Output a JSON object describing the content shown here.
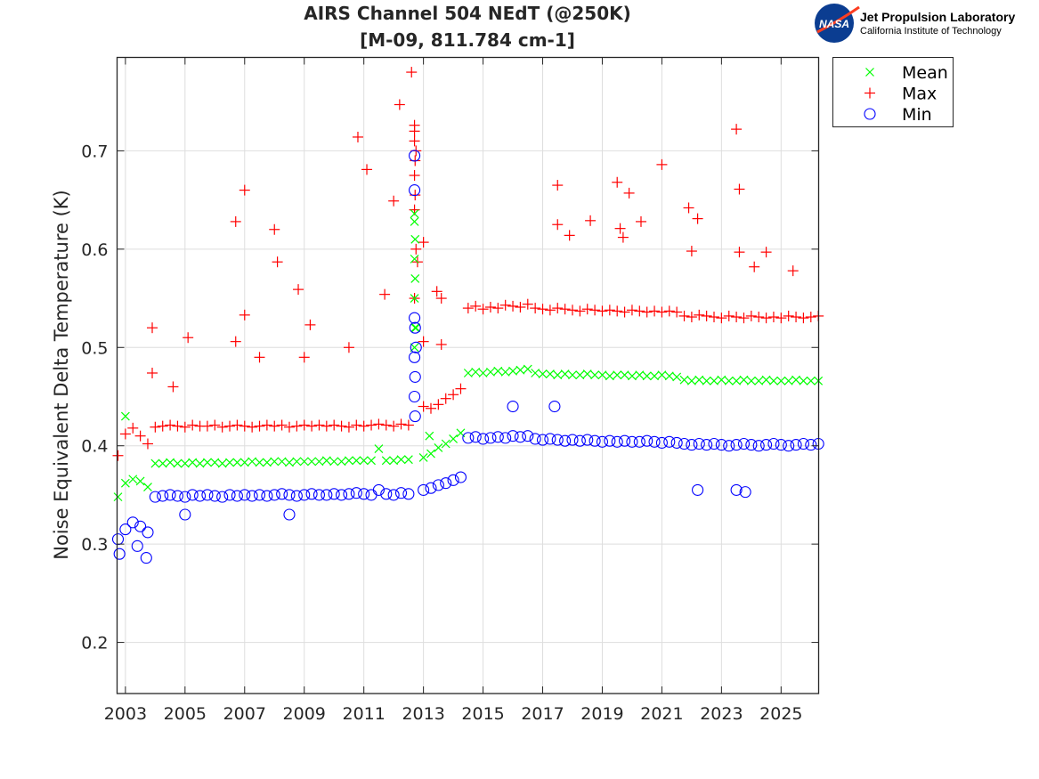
{
  "chart_data": {
    "type": "scatter",
    "title": [
      "AIRS Channel 504 NEdT (@250K)",
      "[M-09, 811.784 cm-1]"
    ],
    "xlabel": "",
    "ylabel": "Noise Equivalent Delta Temperature (K)",
    "xlim": [
      2002.72,
      2026.26
    ],
    "ylim": [
      0.148,
      0.795
    ],
    "xticks": [
      2003,
      2005,
      2007,
      2009,
      2011,
      2013,
      2015,
      2017,
      2019,
      2021,
      2023,
      2025
    ],
    "xtick_labels": [
      "2003",
      "2005",
      "2007",
      "2009",
      "2011",
      "2013",
      "2015",
      "2017",
      "2019",
      "2021",
      "2023",
      "2025"
    ],
    "yticks": [
      0.2,
      0.3,
      0.4,
      0.5,
      0.6,
      0.7
    ],
    "ytick_labels": [
      "0.2",
      "0.3",
      "0.4",
      "0.5",
      "0.6",
      "0.7"
    ],
    "grid": true,
    "legend_placement": "outside-top-right",
    "x": [
      2002.75,
      2003.0,
      2003.25,
      2003.5,
      2003.75,
      2004.0,
      2004.25,
      2004.5,
      2004.75,
      2005.0,
      2005.25,
      2005.5,
      2005.75,
      2006.0,
      2006.25,
      2006.5,
      2006.75,
      2007.0,
      2007.25,
      2007.5,
      2007.75,
      2008.0,
      2008.25,
      2008.5,
      2008.75,
      2009.0,
      2009.25,
      2009.5,
      2009.75,
      2010.0,
      2010.25,
      2010.5,
      2010.75,
      2011.0,
      2011.25,
      2011.5,
      2011.75,
      2012.0,
      2012.25,
      2012.5,
      2012.75,
      2013.0,
      2013.25,
      2013.5,
      2013.75,
      2014.0,
      2014.25,
      2014.5,
      2014.75,
      2015.0,
      2015.25,
      2015.5,
      2015.75,
      2016.0,
      2016.25,
      2016.5,
      2016.75,
      2017.0,
      2017.25,
      2017.5,
      2017.75,
      2018.0,
      2018.25,
      2018.5,
      2018.75,
      2019.0,
      2019.25,
      2019.5,
      2019.75,
      2020.0,
      2020.25,
      2020.5,
      2020.75,
      2021.0,
      2021.25,
      2021.5,
      2021.75,
      2022.0,
      2022.25,
      2022.5,
      2022.75,
      2023.0,
      2023.25,
      2023.5,
      2023.75,
      2024.0,
      2024.25,
      2024.5,
      2024.75,
      2025.0,
      2025.25,
      2025.5,
      2025.75,
      2026.0,
      2026.25
    ],
    "series": [
      {
        "name": "Mean",
        "marker": "x",
        "color": "#00ff00",
        "values": [
          0.348,
          0.362,
          0.366,
          0.364,
          0.358,
          0.382,
          0.382,
          0.383,
          0.382,
          0.382,
          0.383,
          0.382,
          0.383,
          0.383,
          0.382,
          0.383,
          0.383,
          0.383,
          0.384,
          0.383,
          0.383,
          0.384,
          0.384,
          0.383,
          0.384,
          0.384,
          0.384,
          0.384,
          0.385,
          0.384,
          0.384,
          0.385,
          0.385,
          0.385,
          0.385,
          0.397,
          0.385,
          0.385,
          0.386,
          0.386,
          0.52,
          0.388,
          0.392,
          0.398,
          0.402,
          0.407,
          0.413,
          0.474,
          0.475,
          0.474,
          0.475,
          0.476,
          0.475,
          0.476,
          0.477,
          0.478,
          0.474,
          0.473,
          0.473,
          0.472,
          0.473,
          0.472,
          0.472,
          0.473,
          0.472,
          0.472,
          0.471,
          0.472,
          0.472,
          0.471,
          0.472,
          0.471,
          0.471,
          0.472,
          0.471,
          0.47,
          0.467,
          0.466,
          0.467,
          0.466,
          0.466,
          0.467,
          0.466,
          0.466,
          0.467,
          0.466,
          0.466,
          0.467,
          0.466,
          0.466,
          0.466,
          0.467,
          0.466,
          0.466,
          0.466
        ],
        "outliers": [
          [
            2012.7,
            0.636
          ],
          [
            2012.7,
            0.628
          ],
          [
            2012.72,
            0.61
          ],
          [
            2012.7,
            0.59
          ],
          [
            2012.72,
            0.57
          ],
          [
            2012.7,
            0.55
          ],
          [
            2012.72,
            0.52
          ],
          [
            2012.7,
            0.5
          ],
          [
            2013.2,
            0.41
          ],
          [
            2003.0,
            0.43
          ]
        ]
      },
      {
        "name": "Max",
        "marker": "+",
        "color": "#ff0000",
        "values": [
          0.39,
          0.412,
          0.418,
          0.41,
          0.402,
          0.419,
          0.42,
          0.421,
          0.42,
          0.419,
          0.421,
          0.42,
          0.42,
          0.421,
          0.419,
          0.42,
          0.421,
          0.42,
          0.419,
          0.42,
          0.421,
          0.42,
          0.421,
          0.419,
          0.42,
          0.421,
          0.42,
          0.421,
          0.42,
          0.421,
          0.42,
          0.419,
          0.421,
          0.42,
          0.421,
          0.422,
          0.421,
          0.42,
          0.422,
          0.421,
          0.7,
          0.44,
          0.438,
          0.442,
          0.448,
          0.452,
          0.458,
          0.54,
          0.542,
          0.539,
          0.541,
          0.54,
          0.543,
          0.542,
          0.541,
          0.544,
          0.54,
          0.539,
          0.538,
          0.54,
          0.539,
          0.538,
          0.537,
          0.539,
          0.538,
          0.537,
          0.538,
          0.537,
          0.536,
          0.538,
          0.537,
          0.536,
          0.537,
          0.536,
          0.537,
          0.536,
          0.532,
          0.531,
          0.533,
          0.532,
          0.531,
          0.53,
          0.532,
          0.531,
          0.53,
          0.532,
          0.531,
          0.53,
          0.531,
          0.53,
          0.532,
          0.531,
          0.53,
          0.531,
          0.532
        ],
        "outliers": [
          [
            2003.9,
            0.52
          ],
          [
            2003.9,
            0.474
          ],
          [
            2005.1,
            0.51
          ],
          [
            2004.6,
            0.46
          ],
          [
            2006.7,
            0.628
          ],
          [
            2007.0,
            0.66
          ],
          [
            2007.0,
            0.533
          ],
          [
            2006.7,
            0.506
          ],
          [
            2008.0,
            0.62
          ],
          [
            2008.1,
            0.587
          ],
          [
            2007.5,
            0.49
          ],
          [
            2008.8,
            0.559
          ],
          [
            2009.2,
            0.523
          ],
          [
            2009.0,
            0.49
          ],
          [
            2010.8,
            0.714
          ],
          [
            2011.1,
            0.681
          ],
          [
            2010.5,
            0.5
          ],
          [
            2011.7,
            0.554
          ],
          [
            2012.0,
            0.649
          ],
          [
            2012.2,
            0.747
          ],
          [
            2012.6,
            0.78
          ],
          [
            2012.7,
            0.726
          ],
          [
            2012.7,
            0.72
          ],
          [
            2012.7,
            0.71
          ],
          [
            2012.72,
            0.69
          ],
          [
            2012.7,
            0.675
          ],
          [
            2012.72,
            0.655
          ],
          [
            2012.7,
            0.64
          ],
          [
            2012.75,
            0.6
          ],
          [
            2012.7,
            0.55
          ],
          [
            2012.8,
            0.587
          ],
          [
            2013.0,
            0.607
          ],
          [
            2013.45,
            0.557
          ],
          [
            2013.6,
            0.55
          ],
          [
            2013.0,
            0.506
          ],
          [
            2013.6,
            0.503
          ],
          [
            2017.5,
            0.665
          ],
          [
            2017.5,
            0.625
          ],
          [
            2017.9,
            0.614
          ],
          [
            2018.6,
            0.629
          ],
          [
            2019.5,
            0.668
          ],
          [
            2019.6,
            0.621
          ],
          [
            2019.7,
            0.612
          ],
          [
            2019.9,
            0.657
          ],
          [
            2020.3,
            0.628
          ],
          [
            2021.0,
            0.686
          ],
          [
            2021.9,
            0.642
          ],
          [
            2022.2,
            0.631
          ],
          [
            2022.0,
            0.598
          ],
          [
            2023.5,
            0.722
          ],
          [
            2023.6,
            0.661
          ],
          [
            2023.6,
            0.597
          ],
          [
            2024.5,
            0.597
          ],
          [
            2024.1,
            0.582
          ],
          [
            2025.4,
            0.578
          ]
        ]
      },
      {
        "name": "Min",
        "marker": "o",
        "color": "#0000ff",
        "values": [
          0.305,
          0.315,
          0.322,
          0.318,
          0.312,
          0.348,
          0.349,
          0.35,
          0.349,
          0.348,
          0.35,
          0.349,
          0.35,
          0.349,
          0.348,
          0.35,
          0.349,
          0.35,
          0.349,
          0.35,
          0.349,
          0.35,
          0.351,
          0.35,
          0.349,
          0.35,
          0.351,
          0.35,
          0.35,
          0.351,
          0.35,
          0.351,
          0.352,
          0.351,
          0.35,
          0.355,
          0.351,
          0.35,
          0.352,
          0.351,
          0.5,
          0.355,
          0.357,
          0.36,
          0.362,
          0.365,
          0.368,
          0.408,
          0.409,
          0.407,
          0.408,
          0.409,
          0.408,
          0.41,
          0.409,
          0.41,
          0.407,
          0.406,
          0.407,
          0.406,
          0.405,
          0.406,
          0.405,
          0.406,
          0.405,
          0.404,
          0.405,
          0.404,
          0.405,
          0.404,
          0.404,
          0.405,
          0.404,
          0.403,
          0.404,
          0.403,
          0.402,
          0.401,
          0.402,
          0.401,
          0.402,
          0.401,
          0.4,
          0.401,
          0.402,
          0.401,
          0.4,
          0.401,
          0.402,
          0.401,
          0.4,
          0.401,
          0.402,
          0.401,
          0.402
        ],
        "outliers": [
          [
            2002.8,
            0.29
          ],
          [
            2003.7,
            0.286
          ],
          [
            2003.4,
            0.298
          ],
          [
            2012.7,
            0.695
          ],
          [
            2012.7,
            0.66
          ],
          [
            2012.7,
            0.53
          ],
          [
            2012.72,
            0.52
          ],
          [
            2012.7,
            0.49
          ],
          [
            2012.72,
            0.47
          ],
          [
            2012.7,
            0.45
          ],
          [
            2012.72,
            0.43
          ],
          [
            2017.4,
            0.44
          ],
          [
            2016.0,
            0.44
          ],
          [
            2022.2,
            0.355
          ],
          [
            2023.5,
            0.355
          ],
          [
            2023.8,
            0.353
          ],
          [
            2005.0,
            0.33
          ],
          [
            2008.5,
            0.33
          ]
        ]
      }
    ]
  },
  "logo": {
    "org": "NASA",
    "line1": "Jet Propulsion Laboratory",
    "line2": "California Institute of Technology"
  }
}
